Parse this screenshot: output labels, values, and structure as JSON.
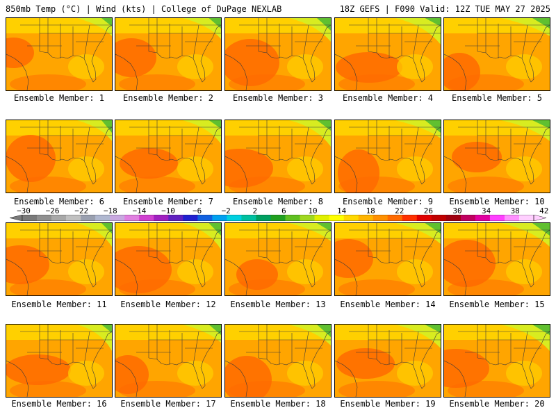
{
  "header": {
    "left": "850mb Temp (°C) | Wind (kts) | College of DuPage NEXLAB",
    "right": "18Z GEFS | F090 Valid: 12Z TUE MAY 27 2025"
  },
  "members": [
    {
      "label": "Ensemble Member: 1"
    },
    {
      "label": "Ensemble Member: 2"
    },
    {
      "label": "Ensemble Member: 3"
    },
    {
      "label": "Ensemble Member: 4"
    },
    {
      "label": "Ensemble Member: 5"
    },
    {
      "label": "Ensemble Member: 6"
    },
    {
      "label": "Ensemble Member: 7"
    },
    {
      "label": "Ensemble Member: 8"
    },
    {
      "label": "Ensemble Member: 9"
    },
    {
      "label": "Ensemble Member: 10"
    },
    {
      "label": "Ensemble Member: 11"
    },
    {
      "label": "Ensemble Member: 12"
    },
    {
      "label": "Ensemble Member: 13"
    },
    {
      "label": "Ensemble Member: 14"
    },
    {
      "label": "Ensemble Member: 15"
    },
    {
      "label": "Ensemble Member: 16"
    },
    {
      "label": "Ensemble Member: 17"
    },
    {
      "label": "Ensemble Member: 18"
    },
    {
      "label": "Ensemble Member: 19"
    },
    {
      "label": "Ensemble Member: 20"
    }
  ],
  "colorbar": {
    "labels": [
      "-30",
      "-26",
      "-22",
      "-18",
      "-14",
      "-10",
      "-6",
      "-2",
      "2",
      "6",
      "10",
      "14",
      "18",
      "22",
      "26",
      "30",
      "34",
      "38",
      "42"
    ],
    "colors": [
      "#7a7a7a",
      "#909090",
      "#a8a8a8",
      "#c0c0c0",
      "#9aa0b0",
      "#b0b8d0",
      "#c8a8e0",
      "#e080e0",
      "#d040d0",
      "#a020c0",
      "#6020c0",
      "#2020d0",
      "#1060e0",
      "#00a0f0",
      "#00d0e0",
      "#00c0a0",
      "#00a060",
      "#20a020",
      "#60c020",
      "#a0d820",
      "#e0f000",
      "#ffff00",
      "#ffd800",
      "#ffb400",
      "#ff9000",
      "#ff6a00",
      "#ff3000",
      "#e00000",
      "#c00000",
      "#a00010",
      "#c00060",
      "#e000a0",
      "#ff40ff",
      "#ff90ff",
      "#ffd0ff"
    ]
  },
  "colors": {
    "warm_bg": "#ffa500",
    "hot": "#ff6a00",
    "mild": "#ffd000",
    "cool": "#d8ec20",
    "green": "#60c030",
    "outline": "#3a3a3a"
  }
}
